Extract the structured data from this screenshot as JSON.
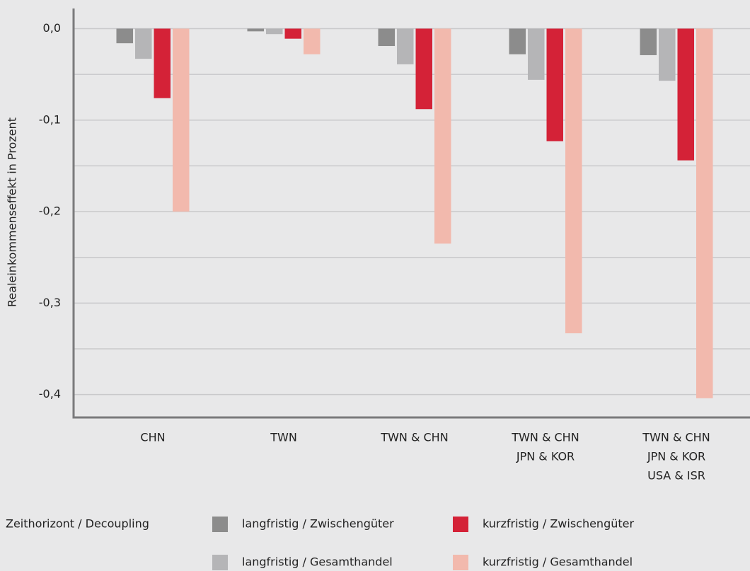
{
  "chart_data": {
    "type": "bar",
    "y_axis_label": "Realeinkommenseffekt in Prozent",
    "categories": [
      [
        "CHN"
      ],
      [
        "TWN"
      ],
      [
        "TWN & CHN"
      ],
      [
        "TWN & CHN",
        "JPN & KOR"
      ],
      [
        "TWN & CHN",
        "JPN & KOR",
        "USA & ISR"
      ]
    ],
    "series": [
      {
        "name": "langfristig / Zwischengüter",
        "color": "#8c8c8c",
        "values": [
          -0.016,
          -0.003,
          -0.019,
          -0.028,
          -0.029
        ]
      },
      {
        "name": "langfristig / Gesamthandel",
        "color": "#b5b5b7",
        "values": [
          -0.033,
          -0.006,
          -0.039,
          -0.056,
          -0.057
        ]
      },
      {
        "name": "kurzfristig / Zwischengüter",
        "color": "#d42237",
        "values": [
          -0.076,
          -0.011,
          -0.088,
          -0.123,
          -0.144
        ]
      },
      {
        "name": "kurzfristig / Gesamthandel",
        "color": "#f2b9ad",
        "values": [
          -0.2,
          -0.028,
          -0.235,
          -0.333,
          -0.404
        ]
      }
    ],
    "legend_title": "Zeithorizont / Decoupling",
    "ylim": [
      -0.425,
      0.022
    ],
    "yticks": [
      {
        "value": 0,
        "label": "0,0"
      },
      {
        "value": -0.1,
        "label": "-0,1"
      },
      {
        "value": -0.2,
        "label": "-0,2"
      },
      {
        "value": -0.3,
        "label": "-0,3"
      },
      {
        "value": -0.4,
        "label": "-0,4"
      }
    ],
    "y_minor_gridlines": [
      -0.05,
      -0.15,
      -0.25,
      -0.35
    ],
    "grid": true
  }
}
